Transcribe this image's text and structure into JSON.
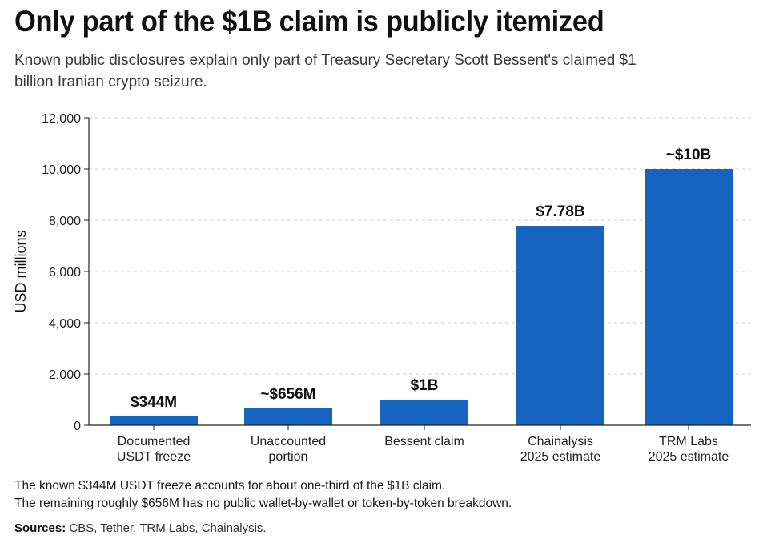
{
  "title": "Only part of the $1B claim is publicly itemized",
  "subtitle": "Known public disclosures explain only part of Treasury Secretary Scott Bessent's claimed $1 billion Iranian crypto seizure.",
  "notes": [
    "The known $344M USDT freeze accounts for about one-third of the $1B claim.",
    "The remaining roughly $656M has no public wallet-by-wallet or token-by-token breakdown."
  ],
  "sources_label": "Sources:",
  "sources_text": " CBS, Tether, TRM Labs, Chainalysis.",
  "chart_data": {
    "type": "bar",
    "categories": [
      [
        "Documented",
        "USDT freeze"
      ],
      [
        "Unaccounted",
        "portion"
      ],
      [
        "Bessent claim"
      ],
      [
        "Chainalysis",
        "2025 estimate"
      ],
      [
        "TRM Labs",
        "2025 estimate"
      ]
    ],
    "values": [
      344,
      656,
      1000,
      7780,
      10000
    ],
    "data_labels": [
      "$344M",
      "~$656M",
      "$1B",
      "$7.78B",
      "~$10B"
    ],
    "ylabel": "USD millions",
    "ylim": [
      0,
      12000
    ],
    "yticks": [
      0,
      2000,
      4000,
      6000,
      8000,
      10000,
      12000
    ],
    "ytick_labels": [
      "0",
      "2,000",
      "4,000",
      "6,000",
      "8,000",
      "10,000",
      "12,000"
    ],
    "grid": true,
    "bar_color": "#1565c0",
    "grid_color": "#cfcfcf"
  }
}
